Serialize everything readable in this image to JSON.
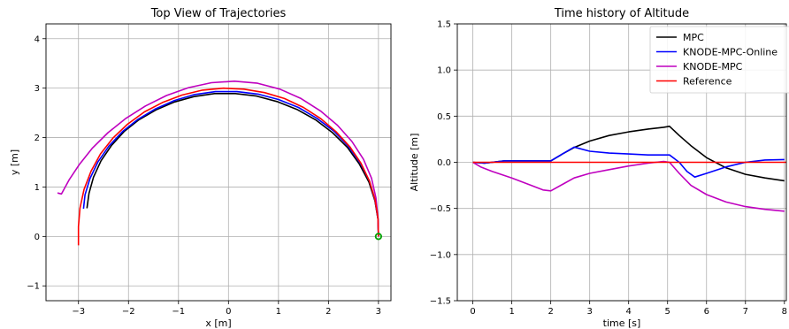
{
  "colors": {
    "MPC": "#000000",
    "KNODE-MPC-Online": "#0000ff",
    "KNODE-MPC": "#bf00bf",
    "Reference": "#ff0000",
    "start_marker": "#00a000"
  },
  "chart_data": [
    {
      "type": "line",
      "title": "Top View of Trajectories",
      "xlabel": "x [m]",
      "ylabel": "y [m]",
      "xlim": [
        -3.65,
        3.25
      ],
      "ylim": [
        -1.3,
        4.3
      ],
      "xticks": [
        -3,
        -2,
        -1,
        0,
        1,
        2,
        3
      ],
      "yticks": [
        -1,
        0,
        1,
        2,
        3,
        4
      ],
      "xtick_labels": [
        "−3",
        "−2",
        "−1",
        "0",
        "1",
        "2",
        "3"
      ],
      "ytick_labels": [
        "−1",
        "0",
        "1",
        "2",
        "3",
        "4"
      ],
      "grid": true,
      "marker": {
        "x": 3.0,
        "y": 0.0,
        "shape": "circle"
      },
      "series": [
        {
          "name": "MPC",
          "color_key": "MPC",
          "x": [
            3.0,
            2.99,
            2.93,
            2.81,
            2.62,
            2.38,
            2.08,
            1.74,
            1.37,
            0.97,
            0.56,
            0.14,
            -0.28,
            -0.69,
            -1.08,
            -1.45,
            -1.79,
            -2.09,
            -2.34,
            -2.55,
            -2.7,
            -2.79,
            -2.83
          ],
          "y": [
            0.0,
            0.35,
            0.72,
            1.1,
            1.46,
            1.8,
            2.1,
            2.36,
            2.57,
            2.73,
            2.84,
            2.89,
            2.89,
            2.83,
            2.72,
            2.56,
            2.36,
            2.12,
            1.84,
            1.53,
            1.2,
            0.87,
            0.57
          ]
        },
        {
          "name": "KNODE-MPC-Online",
          "color_key": "KNODE-MPC-Online",
          "x": [
            3.0,
            2.99,
            2.93,
            2.82,
            2.64,
            2.4,
            2.11,
            1.77,
            1.4,
            1.0,
            0.59,
            0.17,
            -0.26,
            -0.68,
            -1.08,
            -1.46,
            -1.81,
            -2.12,
            -2.39,
            -2.61,
            -2.77,
            -2.87,
            -2.9
          ],
          "y": [
            0.0,
            0.36,
            0.74,
            1.12,
            1.48,
            1.82,
            2.13,
            2.39,
            2.61,
            2.77,
            2.88,
            2.93,
            2.93,
            2.87,
            2.75,
            2.58,
            2.37,
            2.12,
            1.83,
            1.51,
            1.17,
            0.84,
            0.56
          ]
        },
        {
          "name": "KNODE-MPC",
          "color_key": "KNODE-MPC",
          "x": [
            3.0,
            2.99,
            2.95,
            2.86,
            2.7,
            2.47,
            2.18,
            1.84,
            1.45,
            1.03,
            0.58,
            0.12,
            -0.34,
            -0.8,
            -1.24,
            -1.66,
            -2.05,
            -2.41,
            -2.72,
            -2.98,
            -3.19,
            -3.34,
            -3.42
          ],
          "y": [
            0.0,
            0.38,
            0.78,
            1.18,
            1.56,
            1.92,
            2.25,
            2.54,
            2.79,
            2.98,
            3.1,
            3.14,
            3.11,
            3.01,
            2.85,
            2.64,
            2.39,
            2.1,
            1.79,
            1.46,
            1.14,
            0.86,
            0.88
          ]
        },
        {
          "name": "Reference",
          "color_key": "Reference",
          "x": [
            3.0,
            2.99,
            2.93,
            2.82,
            2.65,
            2.43,
            2.16,
            1.85,
            1.5,
            1.12,
            0.72,
            0.31,
            -0.1,
            -0.52,
            -0.93,
            -1.32,
            -1.68,
            -2.02,
            -2.31,
            -2.56,
            -2.75,
            -2.89,
            -2.97,
            -3.0,
            -3.0
          ],
          "y": [
            0.0,
            0.37,
            0.75,
            1.12,
            1.48,
            1.81,
            2.11,
            2.38,
            2.61,
            2.79,
            2.91,
            2.98,
            3.0,
            2.96,
            2.86,
            2.71,
            2.52,
            2.27,
            1.99,
            1.67,
            1.32,
            0.95,
            0.57,
            0.2,
            -0.18
          ]
        }
      ]
    },
    {
      "type": "line",
      "title": "Time history of Altitude",
      "xlabel": "time [s]",
      "ylabel": "Altitude [m]",
      "xlim": [
        -0.4,
        8.05
      ],
      "ylim": [
        -1.5,
        1.5
      ],
      "xticks": [
        0,
        1,
        2,
        3,
        4,
        5,
        6,
        7,
        8
      ],
      "yticks": [
        -1.5,
        -1.0,
        -0.5,
        0.0,
        0.5,
        1.0,
        1.5
      ],
      "xtick_labels": [
        "0",
        "1",
        "2",
        "3",
        "4",
        "5",
        "6",
        "7",
        "8"
      ],
      "ytick_labels": [
        "−1.5",
        "−1.0",
        "−0.5",
        "0.0",
        "0.5",
        "1.0",
        "1.5"
      ],
      "grid": true,
      "legend": {
        "position": "top-right",
        "entries": [
          "MPC",
          "KNODE-MPC-Online",
          "KNODE-MPC",
          "Reference"
        ]
      },
      "series": [
        {
          "name": "MPC",
          "color_key": "MPC",
          "x": [
            0,
            0.3,
            0.8,
            1.2,
            1.6,
            2.0,
            2.3,
            2.6,
            3.0,
            3.5,
            4.0,
            4.5,
            4.9,
            5.05,
            5.3,
            5.6,
            6.0,
            6.5,
            7.0,
            7.5,
            8.0
          ],
          "y": [
            0,
            -0.01,
            0.015,
            0.015,
            0.015,
            0.015,
            0.09,
            0.16,
            0.23,
            0.29,
            0.33,
            0.36,
            0.38,
            0.39,
            0.29,
            0.18,
            0.05,
            -0.06,
            -0.13,
            -0.17,
            -0.2
          ]
        },
        {
          "name": "KNODE-MPC-Online",
          "color_key": "KNODE-MPC-Online",
          "x": [
            0,
            0.3,
            0.8,
            1.2,
            1.6,
            2.0,
            2.3,
            2.6,
            3.0,
            3.5,
            4.0,
            4.5,
            4.9,
            5.05,
            5.3,
            5.5,
            5.7,
            6.0,
            6.5,
            7.0,
            7.5,
            8.0
          ],
          "y": [
            0,
            -0.01,
            0.015,
            0.015,
            0.015,
            0.015,
            0.09,
            0.165,
            0.12,
            0.1,
            0.09,
            0.08,
            0.08,
            0.08,
            0.0,
            -0.1,
            -0.16,
            -0.12,
            -0.05,
            0.0,
            0.025,
            0.03
          ]
        },
        {
          "name": "KNODE-MPC",
          "color_key": "KNODE-MPC",
          "x": [
            0,
            0.2,
            0.5,
            1.0,
            1.5,
            1.8,
            2.0,
            2.3,
            2.6,
            3.0,
            3.5,
            4.0,
            4.5,
            4.9,
            5.05,
            5.3,
            5.6,
            6.0,
            6.5,
            7.0,
            7.5,
            8.0
          ],
          "y": [
            0,
            -0.05,
            -0.1,
            -0.17,
            -0.25,
            -0.3,
            -0.31,
            -0.24,
            -0.17,
            -0.12,
            -0.08,
            -0.04,
            -0.01,
            0.01,
            0.0,
            -0.12,
            -0.25,
            -0.35,
            -0.43,
            -0.48,
            -0.51,
            -0.53
          ]
        },
        {
          "name": "Reference",
          "color_key": "Reference",
          "x": [
            0,
            8.05
          ],
          "y": [
            0,
            0
          ]
        }
      ]
    }
  ]
}
